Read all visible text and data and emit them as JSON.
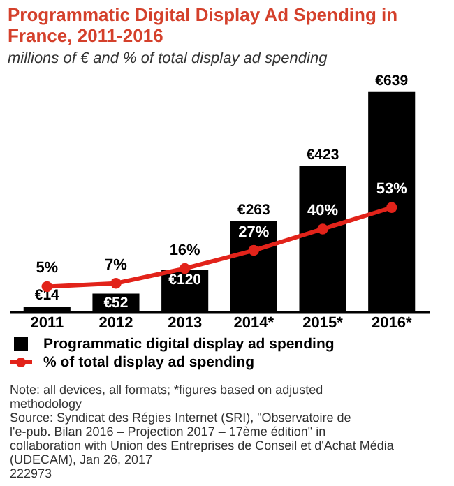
{
  "chart_data": {
    "type": "bar",
    "title": "Programmatic Digital Display Ad Spending in France, 2011-2016",
    "subtitle": "millions of € and % of total display ad spending",
    "categories": [
      "2011",
      "2012",
      "2013",
      "2014*",
      "2015*",
      "2016*"
    ],
    "series": [
      {
        "name": "Programmatic digital display ad spending",
        "color": "#000000",
        "values": [
          14,
          52,
          120,
          263,
          423,
          639
        ],
        "value_labels": [
          "€14",
          "€52",
          "€120",
          "€263",
          "€423",
          "€639"
        ]
      },
      {
        "name": "% of total display ad spending",
        "type": "line",
        "axis": "y2",
        "color": "#e2231a",
        "marker": "circle",
        "values": [
          5,
          7,
          16,
          27,
          40,
          53
        ],
        "value_labels": [
          "5%",
          "7%",
          "16%",
          "27%",
          "40%",
          "53%"
        ]
      }
    ],
    "tick_labels": "x",
    "grid": false,
    "legend": "bottom",
    "annotations": [
      "Note: all devices, all formats; *figures based on adjusted methodology",
      "Source: Syndicat des Régies Internet (SRI), \"Observatoire de l'e-pub. Bilan 2016 – Projection 2017 – 17ème édition\" in collaboration with Union des Entreprises de Conseil et d'Achat Média (UDECAM), Jan 26, 2017",
      "222973"
    ]
  }
}
